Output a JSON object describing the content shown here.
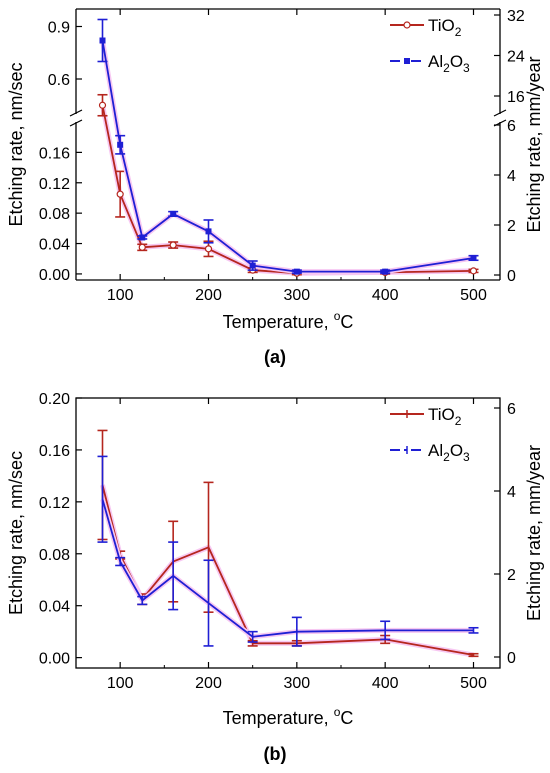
{
  "colors": {
    "tio2": "#b5261e",
    "al2o3": "#1f1fd4",
    "axis": "#000000",
    "halo": "#f7c8f2"
  },
  "chart_data": [
    {
      "panel": "a",
      "caption": "(a)",
      "type": "line",
      "xlabel_main": "Temperature, ",
      "xlabel_sup": "o",
      "xlabel_tail": "C",
      "ylabel_left": "Etching rate, nm/sec",
      "ylabel_right": "Etching rate, mm/year",
      "xlim": [
        50,
        530
      ],
      "xticks": [
        100,
        200,
        300,
        400,
        500
      ],
      "axis_break": true,
      "ylim_lower": [
        -0.008,
        0.2
      ],
      "ylim_upper": [
        0.4,
        1.0
      ],
      "yticks_lower": [
        0.0,
        0.04,
        0.08,
        0.12,
        0.16
      ],
      "ytick_labels_lower": [
        "0.00",
        "0.04",
        "0.08",
        "0.12",
        "0.16"
      ],
      "yticks_upper": [
        0.6,
        0.9
      ],
      "ytick_labels_upper": [
        "0.6",
        "0.9"
      ],
      "yticks_right_lower": [
        0,
        2,
        4,
        6
      ],
      "ytick_labels_right_lower": [
        "0",
        "2",
        "4",
        "6"
      ],
      "yticks_right_upper": [
        16,
        24,
        32
      ],
      "ytick_labels_right_upper": [
        "16",
        "24",
        "32"
      ],
      "legend_position": "top-right",
      "series": [
        {
          "name_main": "TiO",
          "name_sub1": "2",
          "name_mid": "",
          "name_sub2": "",
          "color_key": "tio2",
          "x": [
            80,
            100,
            125,
            160,
            200,
            250,
            300,
            400,
            500
          ],
          "y": [
            0.45,
            0.105,
            0.035,
            0.038,
            0.033,
            0.005,
            0.001,
            0.002,
            0.004
          ],
          "err": [
            0.06,
            0.03,
            0.004,
            0.004,
            0.01,
            0.003,
            0.002,
            0.002,
            0.002
          ]
        },
        {
          "name_main": "Al",
          "name_sub1": "2",
          "name_mid": "O",
          "name_sub2": "3",
          "color_key": "al2o3",
          "x": [
            80,
            100,
            125,
            160,
            200,
            250,
            300,
            400,
            500
          ],
          "y": [
            0.82,
            0.17,
            0.048,
            0.079,
            0.056,
            0.011,
            0.003,
            0.003,
            0.021
          ],
          "err": [
            0.12,
            0.012,
            0.002,
            0.003,
            0.015,
            0.006,
            0.002,
            0.002,
            0.003
          ]
        }
      ]
    },
    {
      "panel": "b",
      "caption": "(b)",
      "type": "line",
      "xlabel_main": "Temperature, ",
      "xlabel_sup": "o",
      "xlabel_tail": "C",
      "ylabel_left": "Etching rate, nm/sec",
      "ylabel_right": "Etching rate, mm/year",
      "xlim": [
        50,
        530
      ],
      "xticks": [
        100,
        200,
        300,
        400,
        500
      ],
      "ylim": [
        -0.008,
        0.2
      ],
      "yticks": [
        0.0,
        0.04,
        0.08,
        0.12,
        0.16,
        0.2
      ],
      "ytick_labels": [
        "0.00",
        "0.04",
        "0.08",
        "0.12",
        "0.16",
        "0.20"
      ],
      "yticks_right": [
        0,
        2,
        4,
        6
      ],
      "ytick_labels_right": [
        "0",
        "2",
        "4",
        "6"
      ],
      "legend_position": "top-right",
      "series": [
        {
          "name_main": "TiO",
          "name_sub1": "2",
          "name_mid": "",
          "name_sub2": "",
          "color_key": "tio2",
          "x": [
            80,
            100,
            125,
            160,
            200,
            250,
            300,
            400,
            500
          ],
          "y": [
            0.133,
            0.079,
            0.045,
            0.074,
            0.085,
            0.011,
            0.011,
            0.014,
            0.002
          ],
          "err": [
            0.042,
            0.003,
            0.004,
            0.031,
            0.05,
            0.002,
            0.002,
            0.003,
            0.001
          ]
        },
        {
          "name_main": "Al",
          "name_sub1": "2",
          "name_mid": "O",
          "name_sub2": "3",
          "color_key": "al2o3",
          "x": [
            80,
            100,
            125,
            160,
            200,
            250,
            300,
            400,
            500
          ],
          "y": [
            0.122,
            0.074,
            0.044,
            0.063,
            0.042,
            0.016,
            0.02,
            0.021,
            0.021
          ],
          "err": [
            0.033,
            0.003,
            0.003,
            0.026,
            0.033,
            0.004,
            0.011,
            0.007,
            0.002
          ]
        }
      ]
    }
  ]
}
